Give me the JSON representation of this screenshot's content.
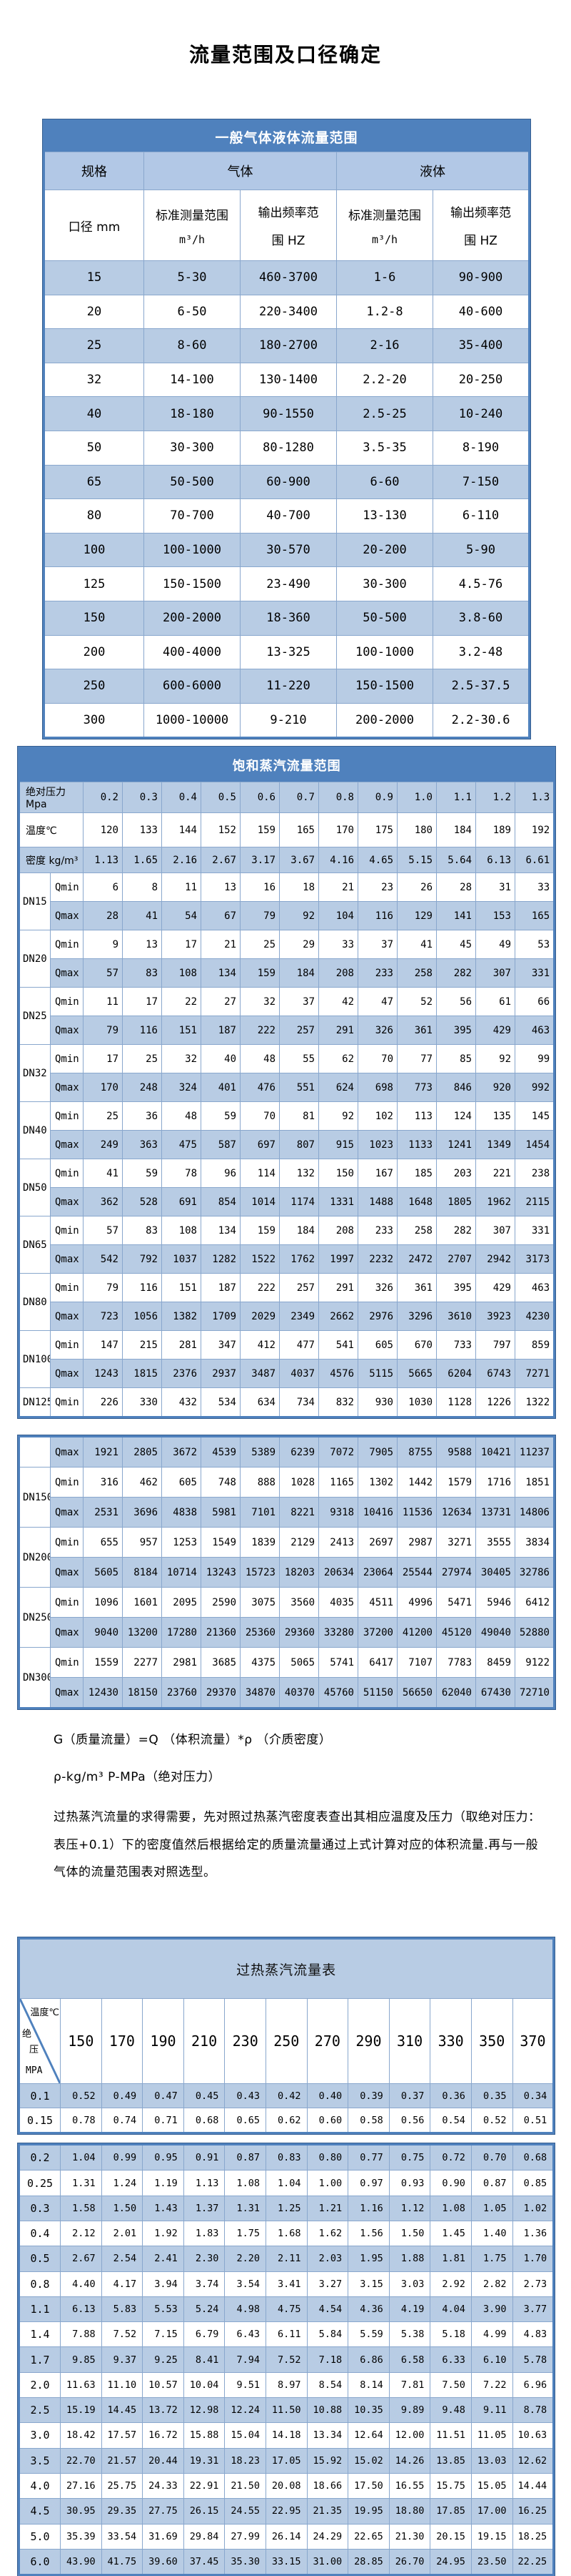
{
  "page_title": "流量范围及口径确定",
  "colors": {
    "header_blue": "#4f81bd",
    "row_light_blue": "#b8cce4",
    "group_header_blue": "#b2c8e6",
    "border_blue": "#365f91",
    "grid_blue": "#89a7cd"
  },
  "general_table": {
    "title": "一般气体液体流量范围",
    "col_group_spec": "规格",
    "col_group_gas": "气体",
    "col_group_liquid": "液体",
    "col_diameter": "口径 mm",
    "col_range_label": "标准测量范围",
    "col_range_unit": "m³/h",
    "col_freq_line1": "输出频率范",
    "col_freq_line2": "围 HZ",
    "rows": [
      {
        "dn": "15",
        "gas_range": "5-30",
        "gas_freq": "460-3700",
        "liquid_range": "1-6",
        "liquid_freq": "90-900"
      },
      {
        "dn": "20",
        "gas_range": "6-50",
        "gas_freq": "220-3400",
        "liquid_range": "1.2-8",
        "liquid_freq": "40-600"
      },
      {
        "dn": "25",
        "gas_range": "8-60",
        "gas_freq": "180-2700",
        "liquid_range": "2-16",
        "liquid_freq": "35-400"
      },
      {
        "dn": "32",
        "gas_range": "14-100",
        "gas_freq": "130-1400",
        "liquid_range": "2.2-20",
        "liquid_freq": "20-250"
      },
      {
        "dn": "40",
        "gas_range": "18-180",
        "gas_freq": "90-1550",
        "liquid_range": "2.5-25",
        "liquid_freq": "10-240"
      },
      {
        "dn": "50",
        "gas_range": "30-300",
        "gas_freq": "80-1280",
        "liquid_range": "3.5-35",
        "liquid_freq": "8-190"
      },
      {
        "dn": "65",
        "gas_range": "50-500",
        "gas_freq": "60-900",
        "liquid_range": "6-60",
        "liquid_freq": "7-150"
      },
      {
        "dn": "80",
        "gas_range": "70-700",
        "gas_freq": "40-700",
        "liquid_range": "13-130",
        "liquid_freq": "6-110"
      },
      {
        "dn": "100",
        "gas_range": "100-1000",
        "gas_freq": "30-570",
        "liquid_range": "20-200",
        "liquid_freq": "5-90"
      },
      {
        "dn": "125",
        "gas_range": "150-1500",
        "gas_freq": "23-490",
        "liquid_range": "30-300",
        "liquid_freq": "4.5-76"
      },
      {
        "dn": "150",
        "gas_range": "200-2000",
        "gas_freq": "18-360",
        "liquid_range": "50-500",
        "liquid_freq": "3.8-60"
      },
      {
        "dn": "200",
        "gas_range": "400-4000",
        "gas_freq": "13-325",
        "liquid_range": "100-1000",
        "liquid_freq": "3.2-48"
      },
      {
        "dn": "250",
        "gas_range": "600-6000",
        "gas_freq": "11-220",
        "liquid_range": "150-1500",
        "liquid_freq": "2.5-37.5"
      },
      {
        "dn": "300",
        "gas_range": "1000-10000",
        "gas_freq": "9-210",
        "liquid_range": "200-2000",
        "liquid_freq": "2.2-30.6"
      }
    ]
  },
  "saturated_table": {
    "title": "饱和蒸汽流量范围",
    "pressure_label": "绝对压力 Mpa",
    "temperature_label": "温度℃",
    "density_label": "密度 kg/m³",
    "pressures": [
      "0.2",
      "0.3",
      "0.4",
      "0.5",
      "0.6",
      "0.7",
      "0.8",
      "0.9",
      "1.0",
      "1.1",
      "1.2",
      "1.3"
    ],
    "temperatures": [
      "120",
      "133",
      "144",
      "152",
      "159",
      "165",
      "170",
      "175",
      "180",
      "184",
      "189",
      "192"
    ],
    "densities": [
      "1.13",
      "1.65",
      "2.16",
      "2.67",
      "3.17",
      "3.67",
      "4.16",
      "4.65",
      "5.15",
      "5.64",
      "6.13",
      "6.61"
    ],
    "block1_rows": [
      {
        "dn": "DN15",
        "span": 2,
        "q": "Qmin",
        "values": [
          "6",
          "8",
          "11",
          "13",
          "16",
          "18",
          "21",
          "23",
          "26",
          "28",
          "31",
          "33"
        ]
      },
      {
        "q": "Qmax",
        "values": [
          "28",
          "41",
          "54",
          "67",
          "79",
          "92",
          "104",
          "116",
          "129",
          "141",
          "153",
          "165"
        ]
      },
      {
        "dn": "DN20",
        "span": 2,
        "q": "Qmin",
        "values": [
          "9",
          "13",
          "17",
          "21",
          "25",
          "29",
          "33",
          "37",
          "41",
          "45",
          "49",
          "53"
        ]
      },
      {
        "q": "Qmax",
        "values": [
          "57",
          "83",
          "108",
          "134",
          "159",
          "184",
          "208",
          "233",
          "258",
          "282",
          "307",
          "331"
        ]
      },
      {
        "dn": "DN25",
        "span": 2,
        "q": "Qmin",
        "values": [
          "11",
          "17",
          "22",
          "27",
          "32",
          "37",
          "42",
          "47",
          "52",
          "56",
          "61",
          "66"
        ]
      },
      {
        "q": "Qmax",
        "values": [
          "79",
          "116",
          "151",
          "187",
          "222",
          "257",
          "291",
          "326",
          "361",
          "395",
          "429",
          "463"
        ]
      },
      {
        "dn": "DN32",
        "span": 2,
        "q": "Qmin",
        "values": [
          "17",
          "25",
          "32",
          "40",
          "48",
          "55",
          "62",
          "70",
          "77",
          "85",
          "92",
          "99"
        ]
      },
      {
        "q": "Qmax",
        "values": [
          "170",
          "248",
          "324",
          "401",
          "476",
          "551",
          "624",
          "698",
          "773",
          "846",
          "920",
          "992"
        ]
      },
      {
        "dn": "DN40",
        "span": 2,
        "q": "Qmin",
        "values": [
          "25",
          "36",
          "48",
          "59",
          "70",
          "81",
          "92",
          "102",
          "113",
          "124",
          "135",
          "145"
        ]
      },
      {
        "q": "Qmax",
        "values": [
          "249",
          "363",
          "475",
          "587",
          "697",
          "807",
          "915",
          "1023",
          "1133",
          "1241",
          "1349",
          "1454"
        ]
      },
      {
        "dn": "DN50",
        "span": 2,
        "q": "Qmin",
        "values": [
          "41",
          "59",
          "78",
          "96",
          "114",
          "132",
          "150",
          "167",
          "185",
          "203",
          "221",
          "238"
        ]
      },
      {
        "q": "Qmax",
        "values": [
          "362",
          "528",
          "691",
          "854",
          "1014",
          "1174",
          "1331",
          "1488",
          "1648",
          "1805",
          "1962",
          "2115"
        ]
      },
      {
        "dn": "DN65",
        "span": 2,
        "q": "Qmin",
        "values": [
          "57",
          "83",
          "108",
          "134",
          "159",
          "184",
          "208",
          "233",
          "258",
          "282",
          "307",
          "331"
        ]
      },
      {
        "q": "Qmax",
        "values": [
          "542",
          "792",
          "1037",
          "1282",
          "1522",
          "1762",
          "1997",
          "2232",
          "2472",
          "2707",
          "2942",
          "3173"
        ]
      },
      {
        "dn": "DN80",
        "span": 2,
        "q": "Qmin",
        "values": [
          "79",
          "116",
          "151",
          "187",
          "222",
          "257",
          "291",
          "326",
          "361",
          "395",
          "429",
          "463"
        ]
      },
      {
        "q": "Qmax",
        "values": [
          "723",
          "1056",
          "1382",
          "1709",
          "2029",
          "2349",
          "2662",
          "2976",
          "3296",
          "3610",
          "3923",
          "4230"
        ]
      },
      {
        "dn": "DN100",
        "span": 2,
        "q": "Qmin",
        "values": [
          "147",
          "215",
          "281",
          "347",
          "412",
          "477",
          "541",
          "605",
          "670",
          "733",
          "797",
          "859"
        ]
      },
      {
        "q": "Qmax",
        "values": [
          "1243",
          "1815",
          "2376",
          "2937",
          "3487",
          "4037",
          "4576",
          "5115",
          "5665",
          "6204",
          "6743",
          "7271"
        ]
      },
      {
        "dn": "DN125",
        "span": 1,
        "q": "Qmin",
        "values": [
          "226",
          "330",
          "432",
          "534",
          "634",
          "734",
          "832",
          "930",
          "1030",
          "1128",
          "1226",
          "1322"
        ]
      }
    ],
    "block2_rows": [
      {
        "dn": "",
        "span": 1,
        "q": "Qmax",
        "values": [
          "1921",
          "2805",
          "3672",
          "4539",
          "5389",
          "6239",
          "7072",
          "7905",
          "8755",
          "9588",
          "10421",
          "11237"
        ]
      },
      {
        "dn": "DN150",
        "span": 2,
        "q": "Qmin",
        "values": [
          "316",
          "462",
          "605",
          "748",
          "888",
          "1028",
          "1165",
          "1302",
          "1442",
          "1579",
          "1716",
          "1851"
        ]
      },
      {
        "q": "Qmax",
        "values": [
          "2531",
          "3696",
          "4838",
          "5981",
          "7101",
          "8221",
          "9318",
          "10416",
          "11536",
          "12634",
          "13731",
          "14806"
        ]
      },
      {
        "dn": "DN200",
        "span": 2,
        "q": "Qmin",
        "values": [
          "655",
          "957",
          "1253",
          "1549",
          "1839",
          "2129",
          "2413",
          "2697",
          "2987",
          "3271",
          "3555",
          "3834"
        ]
      },
      {
        "q": "Qmax",
        "values": [
          "5605",
          "8184",
          "10714",
          "13243",
          "15723",
          "18203",
          "20634",
          "23064",
          "25544",
          "27974",
          "30405",
          "32786"
        ]
      },
      {
        "dn": "DN250",
        "span": 2,
        "q": "Qmin",
        "values": [
          "1096",
          "1601",
          "2095",
          "2590",
          "3075",
          "3560",
          "4035",
          "4511",
          "4996",
          "5471",
          "5946",
          "6412"
        ]
      },
      {
        "q": "Qmax",
        "values": [
          "9040",
          "13200",
          "17280",
          "21360",
          "25360",
          "29360",
          "33280",
          "37200",
          "41200",
          "45120",
          "49040",
          "52880"
        ]
      },
      {
        "dn": "DN300",
        "span": 2,
        "q": "Qmin",
        "values": [
          "1559",
          "2277",
          "2981",
          "3685",
          "4375",
          "5065",
          "5741",
          "6417",
          "7107",
          "7783",
          "8459",
          "9122"
        ]
      },
      {
        "q": "Qmax",
        "values": [
          "12430",
          "18150",
          "23760",
          "29370",
          "34870",
          "40370",
          "45760",
          "51150",
          "56650",
          "62040",
          "67430",
          "72710"
        ]
      }
    ]
  },
  "notes": {
    "formula": "G（质量流量）=Q （体积流量）*ρ （介质密度）",
    "units": "ρ-kg/m³ P-MPa（绝对压力）",
    "paragraph": "过热蒸汽流量的求得需要，先对照过热蒸汽密度表查出其相应温度及压力（取绝对压力：表压+0.1）下的密度值然后根据给定的质量流量通过上式计算对应的体积流量.再与一般气体的流量范围表对照选型。"
  },
  "superheated_table": {
    "title": "过热蒸汽流量表",
    "corner_temp_label": "温度℃",
    "corner_pressure_char1": "绝",
    "corner_pressure_char2": "压",
    "corner_pressure_unit": "MPA",
    "temperatures": [
      "150",
      "170",
      "190",
      "210",
      "230",
      "250",
      "270",
      "290",
      "310",
      "330",
      "350",
      "370"
    ],
    "block1_rows": [
      {
        "p": "0.1",
        "values": [
          "0.52",
          "0.49",
          "0.47",
          "0.45",
          "0.43",
          "0.42",
          "0.40",
          "0.39",
          "0.37",
          "0.36",
          "0.35",
          "0.34"
        ]
      },
      {
        "p": "0.15",
        "values": [
          "0.78",
          "0.74",
          "0.71",
          "0.68",
          "0.65",
          "0.62",
          "0.60",
          "0.58",
          "0.56",
          "0.54",
          "0.52",
          "0.51"
        ]
      }
    ],
    "block2_rows": [
      {
        "p": "0.2",
        "values": [
          "1.04",
          "0.99",
          "0.95",
          "0.91",
          "0.87",
          "0.83",
          "0.80",
          "0.77",
          "0.75",
          "0.72",
          "0.70",
          "0.68"
        ]
      },
      {
        "p": "0.25",
        "values": [
          "1.31",
          "1.24",
          "1.19",
          "1.13",
          "1.08",
          "1.04",
          "1.00",
          "0.97",
          "0.93",
          "0.90",
          "0.87",
          "0.85"
        ]
      },
      {
        "p": "0.3",
        "values": [
          "1.58",
          "1.50",
          "1.43",
          "1.37",
          "1.31",
          "1.25",
          "1.21",
          "1.16",
          "1.12",
          "1.08",
          "1.05",
          "1.02"
        ]
      },
      {
        "p": "0.4",
        "values": [
          "2.12",
          "2.01",
          "1.92",
          "1.83",
          "1.75",
          "1.68",
          "1.62",
          "1.56",
          "1.50",
          "1.45",
          "1.40",
          "1.36"
        ]
      },
      {
        "p": "0.5",
        "values": [
          "2.67",
          "2.54",
          "2.41",
          "2.30",
          "2.20",
          "2.11",
          "2.03",
          "1.95",
          "1.88",
          "1.81",
          "1.75",
          "1.70"
        ]
      },
      {
        "p": "0.8",
        "values": [
          "4.40",
          "4.17",
          "3.94",
          "3.74",
          "3.54",
          "3.41",
          "3.27",
          "3.15",
          "3.03",
          "2.92",
          "2.82",
          "2.73"
        ]
      },
      {
        "p": "1.1",
        "values": [
          "6.13",
          "5.83",
          "5.53",
          "5.24",
          "4.98",
          "4.75",
          "4.54",
          "4.36",
          "4.19",
          "4.04",
          "3.90",
          "3.77"
        ]
      },
      {
        "p": "1.4",
        "values": [
          "7.88",
          "7.52",
          "7.15",
          "6.79",
          "6.43",
          "6.11",
          "5.84",
          "5.59",
          "5.38",
          "5.18",
          "4.99",
          "4.83"
        ]
      },
      {
        "p": "1.7",
        "values": [
          "9.85",
          "9.37",
          "9.25",
          "8.41",
          "7.94",
          "7.52",
          "7.18",
          "6.86",
          "6.58",
          "6.33",
          "6.10",
          "5.78"
        ]
      },
      {
        "p": "2.0",
        "values": [
          "11.63",
          "11.10",
          "10.57",
          "10.04",
          "9.51",
          "8.97",
          "8.54",
          "8.14",
          "7.81",
          "7.50",
          "7.22",
          "6.96"
        ]
      },
      {
        "p": "2.5",
        "values": [
          "15.19",
          "14.45",
          "13.72",
          "12.98",
          "12.24",
          "11.50",
          "10.88",
          "10.35",
          "9.89",
          "9.48",
          "9.11",
          "8.78"
        ]
      },
      {
        "p": "3.0",
        "values": [
          "18.42",
          "17.57",
          "16.72",
          "15.88",
          "15.04",
          "14.18",
          "13.34",
          "12.64",
          "12.00",
          "11.51",
          "11.05",
          "10.63"
        ]
      },
      {
        "p": "3.5",
        "values": [
          "22.70",
          "21.57",
          "20.44",
          "19.31",
          "18.23",
          "17.05",
          "15.92",
          "15.02",
          "14.26",
          "13.85",
          "13.03",
          "12.62"
        ]
      },
      {
        "p": "4.0",
        "values": [
          "27.16",
          "25.75",
          "24.33",
          "22.91",
          "21.50",
          "20.08",
          "18.66",
          "17.50",
          "16.55",
          "15.75",
          "15.05",
          "14.44"
        ]
      },
      {
        "p": "4.5",
        "values": [
          "30.95",
          "29.35",
          "27.75",
          "26.15",
          "24.55",
          "22.95",
          "21.35",
          "19.95",
          "18.80",
          "17.85",
          "17.00",
          "16.25"
        ]
      },
      {
        "p": "5.0",
        "values": [
          "35.39",
          "33.54",
          "31.69",
          "29.84",
          "27.99",
          "26.14",
          "24.29",
          "22.65",
          "21.30",
          "20.15",
          "19.15",
          "18.25"
        ]
      },
      {
        "p": "6.0",
        "values": [
          "43.90",
          "41.75",
          "39.60",
          "37.45",
          "35.30",
          "33.15",
          "31.00",
          "28.85",
          "26.70",
          "24.95",
          "23.50",
          "22.25"
        ]
      }
    ]
  }
}
